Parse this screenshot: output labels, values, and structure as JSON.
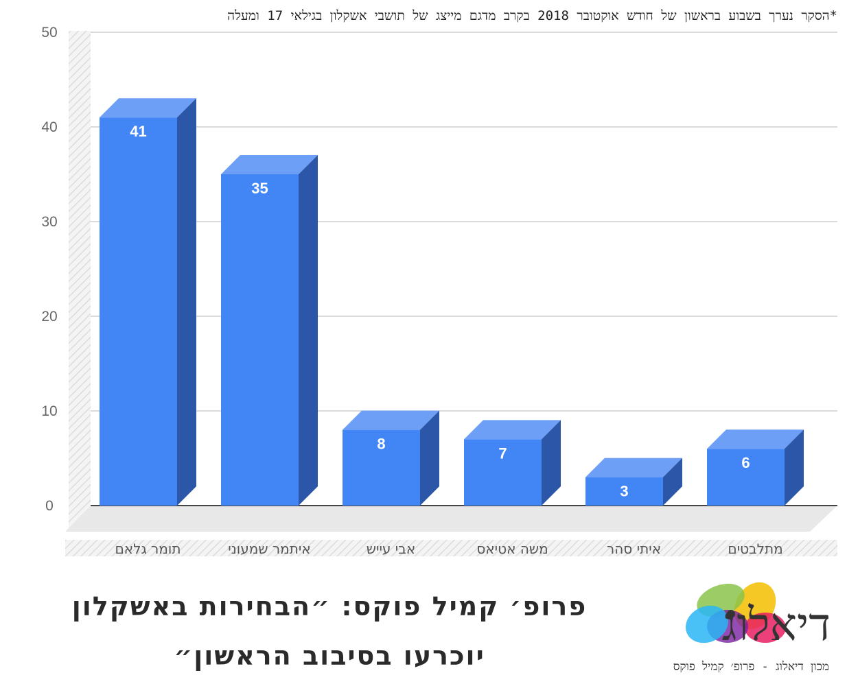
{
  "footnote": "*הסקר נערך בשבוע בראשון של חודש אוקטובר 2018 בקרב מדגם מייצג של תושבי אשקלון בגילאי 17 ומעלה",
  "headline": {
    "line1": "פרופ׳ קמיל פוקס: ״הבחירות באשקלון",
    "line2": "יוכרעו בסיבוב הראשון״"
  },
  "logo": {
    "text": "דיאלוג",
    "caption": "מכון דיאלוג - פרופ׳ קמיל פוקס"
  },
  "colors": {
    "bar_front": "#4285f4",
    "bar_top": "#6d9ff6",
    "bar_side": "#2c57a8",
    "grid": "#cfcfcf",
    "axis_text": "#666666"
  },
  "chart_data": {
    "type": "bar",
    "categories": [
      "תומר גלאם",
      "איתמר שמעוני",
      "אבי עייש",
      "משה אטיאס",
      "איתי סהר",
      "מתלבטים"
    ],
    "values": [
      41,
      35,
      8,
      7,
      3,
      6
    ],
    "data_labels": [
      "41",
      "35",
      "8",
      "7",
      "3",
      "6"
    ],
    "ylim": [
      0,
      50
    ],
    "yticks": [
      0,
      10,
      20,
      30,
      40,
      50
    ],
    "grid": true,
    "style": "3d-columns"
  }
}
